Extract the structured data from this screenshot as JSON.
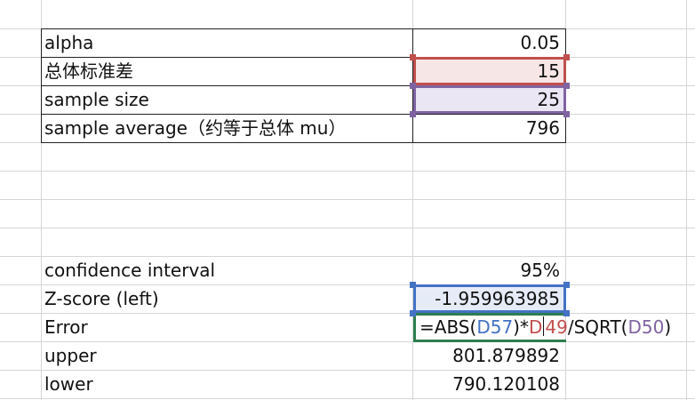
{
  "rows": {
    "alpha": {
      "label": "alpha",
      "value": "0.05"
    },
    "sd": {
      "label": "总体标准差",
      "value": "15"
    },
    "n": {
      "label": "sample size",
      "value": "25"
    },
    "avg": {
      "label": "sample average（约等于总体 mu）",
      "value": "796"
    },
    "ci": {
      "label": "confidence interval",
      "value": "95%"
    },
    "z": {
      "label": "Z-score (left)",
      "value": "-1.959963985"
    },
    "err": {
      "label": "Error"
    },
    "upper": {
      "label": "upper",
      "value": "801.879892"
    },
    "lower": {
      "label": "lower",
      "value": "790.120108"
    }
  },
  "formula": {
    "prefix": "=ABS(",
    "ref1": "D57",
    "mid1": ")*",
    "ref2a": "D",
    "ref2b": "49",
    "mid2": "/SQRT(",
    "ref3": "D50",
    "suffix": ")"
  },
  "colors": {
    "red": "#c0504d",
    "purple": "#8064a2",
    "blue": "#4472c4",
    "green": "#2e7d4f"
  }
}
